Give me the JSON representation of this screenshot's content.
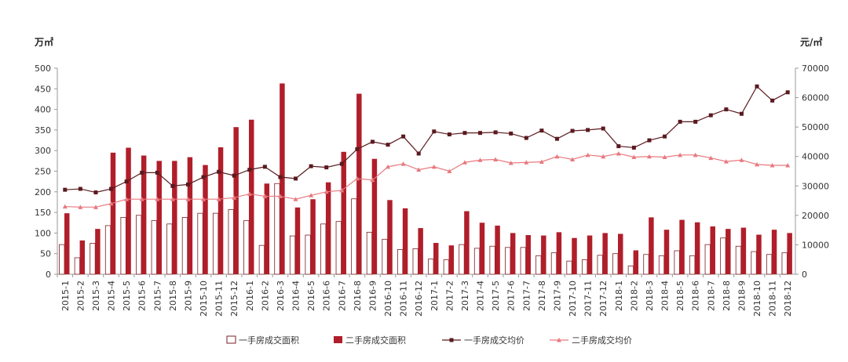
{
  "chart_data": {
    "type": "bar",
    "title": "",
    "y_left_unit": "万㎡",
    "y_right_unit": "元/㎡",
    "ylim_left": [
      0,
      500
    ],
    "yticks_left": [
      "0",
      "50",
      "100",
      "150",
      "200",
      "250",
      "300",
      "350",
      "400",
      "450",
      "500"
    ],
    "ylim_right": [
      0,
      70000
    ],
    "yticks_right": [
      "0",
      "10000",
      "20000",
      "30000",
      "40000",
      "50000",
      "60000",
      "70000"
    ],
    "legend_position": "bottom",
    "grid": false,
    "categories": [
      "2015-1",
      "2015-2",
      "2015-3",
      "2015-4",
      "2015-5",
      "2015-6",
      "2015-7",
      "2015-8",
      "2015-9",
      "2015-10",
      "2015-11",
      "2015-12",
      "2016-1",
      "2016-2",
      "2016-3",
      "2016-4",
      "2016-5",
      "2016-6",
      "2016-7",
      "2016-8",
      "2016-9",
      "2016-10",
      "2016-11",
      "2016-12",
      "2017-1",
      "2017-2",
      "2017-3",
      "2017-4",
      "2017-5",
      "2017-6",
      "2017-7",
      "2017-8",
      "2017-9",
      "2017-10",
      "2017-11",
      "2017-12",
      "2018-1",
      "2018-2",
      "2018-3",
      "2018-4",
      "2018-5",
      "2018-6",
      "2018-7",
      "2018-8",
      "2018-9",
      "2018-10",
      "2018-11",
      "2018-12"
    ],
    "series": [
      {
        "name": "一手房成交面积",
        "kind": "bar",
        "axis": "left",
        "color": "#ffffff",
        "stroke": "#7a1f23",
        "values": [
          72,
          40,
          75,
          118,
          138,
          143,
          130,
          122,
          138,
          148,
          148,
          157,
          130,
          70,
          220,
          93,
          95,
          122,
          128,
          183,
          102,
          85,
          60,
          62,
          37,
          35,
          72,
          63,
          68,
          65,
          65,
          45,
          52,
          32,
          35,
          46,
          50,
          20,
          48,
          45,
          57,
          45,
          72,
          88,
          68,
          55,
          48,
          52
        ]
      },
      {
        "name": "二手房成交面积",
        "kind": "bar",
        "axis": "left",
        "color": "#b01e2a",
        "values": [
          148,
          82,
          110,
          295,
          307,
          288,
          275,
          275,
          284,
          265,
          308,
          357,
          375,
          220,
          463,
          162,
          182,
          223,
          297,
          438,
          280,
          180,
          160,
          112,
          76,
          70,
          153,
          125,
          118,
          100,
          95,
          94,
          102,
          88,
          94,
          100,
          98,
          58,
          138,
          108,
          132,
          126,
          116,
          110,
          113,
          96,
          108,
          100
        ]
      },
      {
        "name": "一手房成交均价",
        "kind": "line",
        "axis": "right",
        "color": "#5a1a1f",
        "marker": "square",
        "values": [
          28700,
          29000,
          27800,
          29000,
          31500,
          34500,
          34500,
          30000,
          30500,
          33000,
          34800,
          33500,
          35500,
          36500,
          33000,
          32500,
          36700,
          36300,
          37500,
          42500,
          45000,
          44000,
          46800,
          41000,
          48500,
          47500,
          48000,
          48000,
          48200,
          47800,
          46300,
          48800,
          46000,
          48700,
          49000,
          49500,
          43500,
          43000,
          45500,
          46800,
          51800,
          51800,
          54000,
          56000,
          54500,
          63800,
          59000,
          61800
        ]
      },
      {
        "name": "二手房成交均价",
        "kind": "line",
        "axis": "right",
        "color": "#e8797f",
        "marker": "triangle",
        "values": [
          23000,
          22800,
          22800,
          24000,
          25500,
          25500,
          25500,
          25500,
          25500,
          25500,
          25500,
          26000,
          27300,
          26500,
          26500,
          25500,
          26800,
          28000,
          28500,
          32500,
          32000,
          36500,
          37500,
          35500,
          36500,
          35000,
          38000,
          38800,
          39000,
          37800,
          38000,
          38200,
          40000,
          39000,
          40500,
          40000,
          41000,
          39800,
          40000,
          39800,
          40500,
          40500,
          39500,
          38300,
          38800,
          37300,
          37000,
          37000
        ]
      }
    ]
  }
}
